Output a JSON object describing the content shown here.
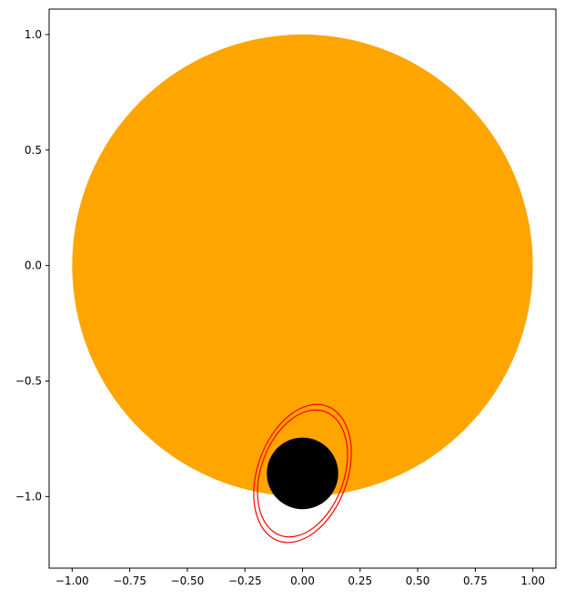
{
  "chart_data": {
    "type": "scatter",
    "title": "",
    "xlabel": "",
    "ylabel": "",
    "xlim": [
      -1.1,
      1.1
    ],
    "ylim": [
      -1.31,
      1.11
    ],
    "grid": false,
    "x_ticks": [
      {
        "value": -1.0,
        "label": "−1.00"
      },
      {
        "value": -0.75,
        "label": "−0.75"
      },
      {
        "value": -0.5,
        "label": "−0.50"
      },
      {
        "value": -0.25,
        "label": "−0.25"
      },
      {
        "value": 0.0,
        "label": "0.00"
      },
      {
        "value": 0.25,
        "label": "0.25"
      },
      {
        "value": 0.5,
        "label": "0.50"
      },
      {
        "value": 0.75,
        "label": "0.75"
      },
      {
        "value": 1.0,
        "label": "1.00"
      }
    ],
    "y_ticks": [
      {
        "value": 1.0,
        "label": "1.0"
      },
      {
        "value": 0.5,
        "label": "0.5"
      },
      {
        "value": 0.0,
        "label": "0.0"
      },
      {
        "value": -0.5,
        "label": "−0.5"
      },
      {
        "value": -1.0,
        "label": "−1.0"
      }
    ],
    "shapes": [
      {
        "kind": "circle",
        "name": "orange-disk",
        "cx": 0.0,
        "cy": 0.0,
        "r": 1.0,
        "fill": "#ffa500"
      },
      {
        "kind": "ellipse",
        "name": "outer-orbit",
        "cx": 0.0,
        "cy": -0.9,
        "rx": 0.195,
        "ry": 0.31,
        "angle_deg": 20,
        "stroke": "#ff0000"
      },
      {
        "kind": "ellipse",
        "name": "inner-orbit",
        "cx": 0.0,
        "cy": -0.9,
        "rx": 0.18,
        "ry": 0.285,
        "angle_deg": 20,
        "stroke": "#ff0000"
      },
      {
        "kind": "circle",
        "name": "black-disk",
        "cx": 0.0,
        "cy": -0.9,
        "r": 0.155,
        "fill": "#000000"
      }
    ]
  }
}
